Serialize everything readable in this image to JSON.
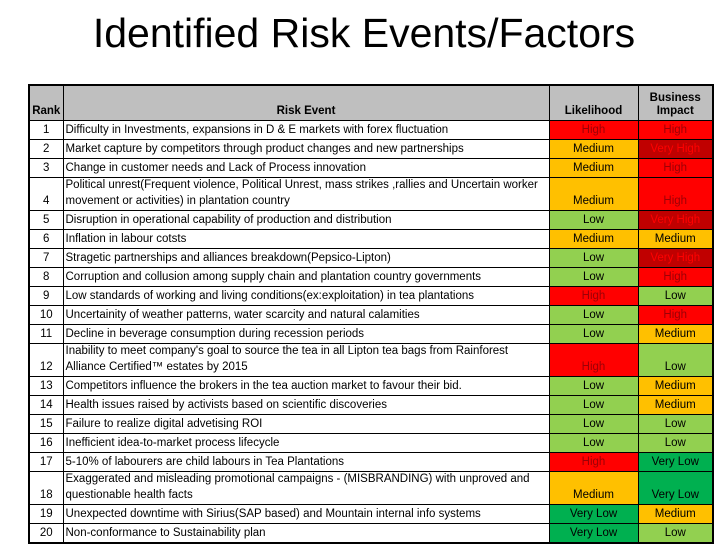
{
  "slide": {
    "title": "Identified Risk Events/Factors"
  },
  "table": {
    "headers": {
      "rank": "Rank",
      "event": "Risk Event",
      "likelihood": "Likelihood",
      "impact": "Business Impact"
    },
    "header_bg": "#BFBFBF",
    "levels": {
      "Very High": {
        "bg": "#C00000",
        "fg": "#FF0000"
      },
      "High": {
        "bg": "#FF0000",
        "fg": "#9C0006"
      },
      "Medium": {
        "bg": "#FFC000",
        "fg": "#000000"
      },
      "Low": {
        "bg": "#92D050",
        "fg": "#000000"
      },
      "Very Low": {
        "bg": "#00B050",
        "fg": "#000000"
      }
    },
    "rows": [
      {
        "rank": "1",
        "event": "Difficulty in Investments, expansions in D & E markets with forex fluctuation",
        "likelihood": "High",
        "impact": "High"
      },
      {
        "rank": "2",
        "event": "Market capture by competitors through product changes and new partnerships",
        "likelihood": "Medium",
        "impact": "Very High"
      },
      {
        "rank": "3",
        "event": "Change in customer needs and Lack of Process innovation",
        "likelihood": "Medium",
        "impact": "High"
      },
      {
        "rank": "4",
        "event": "Political unrest(Frequent violence, Political Unrest, mass strikes ,rallies and Uncertain worker movement or activities) in plantation country",
        "likelihood": "Medium",
        "impact": "High"
      },
      {
        "rank": "5",
        "event": "Disruption in operational capability of production and distribution",
        "likelihood": "Low",
        "impact": "Very High"
      },
      {
        "rank": "6",
        "event": "Inflation in labour cotsts",
        "likelihood": "Medium",
        "impact": "Medium"
      },
      {
        "rank": "7",
        "event": "Stragetic partnerships and alliances breakdown(Pepsico-Lipton)",
        "likelihood": "Low",
        "impact": "Very High"
      },
      {
        "rank": "8",
        "event": "Corruption and collusion among supply chain and plantation country governments",
        "likelihood": "Low",
        "impact": "High"
      },
      {
        "rank": "9",
        "event": "Low standards of working and living conditions(ex:exploitation) in tea plantations",
        "likelihood": "High",
        "impact": "Low"
      },
      {
        "rank": "10",
        "event": "Uncertainity of weather patterns, water scarcity and natural calamities",
        "likelihood": "Low",
        "impact": "High"
      },
      {
        "rank": "11",
        "event": "Decline in beverage consumption during recession periods",
        "likelihood": "Low",
        "impact": "Medium"
      },
      {
        "rank": "12",
        "event": "Inability to meet company's goal to source the tea in all Lipton tea bags from Rainforest Alliance Certified™ estates by 2015",
        "likelihood": "High",
        "impact": "Low"
      },
      {
        "rank": "13",
        "event": "Competitors influence the brokers in the tea auction market to favour their bid.",
        "likelihood": "Low",
        "impact": "Medium"
      },
      {
        "rank": "14",
        "event": "Health issues raised by activists based on scientific discoveries",
        "likelihood": "Low",
        "impact": "Medium"
      },
      {
        "rank": "15",
        "event": "Failure to realize digital advetising ROI",
        "likelihood": "Low",
        "impact": "Low"
      },
      {
        "rank": "16",
        "event": "Inefficient idea-to-market process lifecycle",
        "likelihood": "Low",
        "impact": "Low"
      },
      {
        "rank": "17",
        "event": "5-10% of labourers are child labours in Tea Plantations",
        "likelihood": "High",
        "impact": "Very Low"
      },
      {
        "rank": "18",
        "event": "Exaggerated and misleading promotional campaigns - (MISBRANDING) with unproved and questionable health facts",
        "likelihood": "Medium",
        "impact": "Very Low"
      },
      {
        "rank": "19",
        "event": "Unexpected downtime with Sirius(SAP based) and Mountain internal info systems",
        "likelihood": "Very Low",
        "impact": "Medium"
      },
      {
        "rank": "20",
        "event": "Non-conformance to Sustainability plan",
        "likelihood": "Very Low",
        "impact": "Low"
      }
    ]
  }
}
